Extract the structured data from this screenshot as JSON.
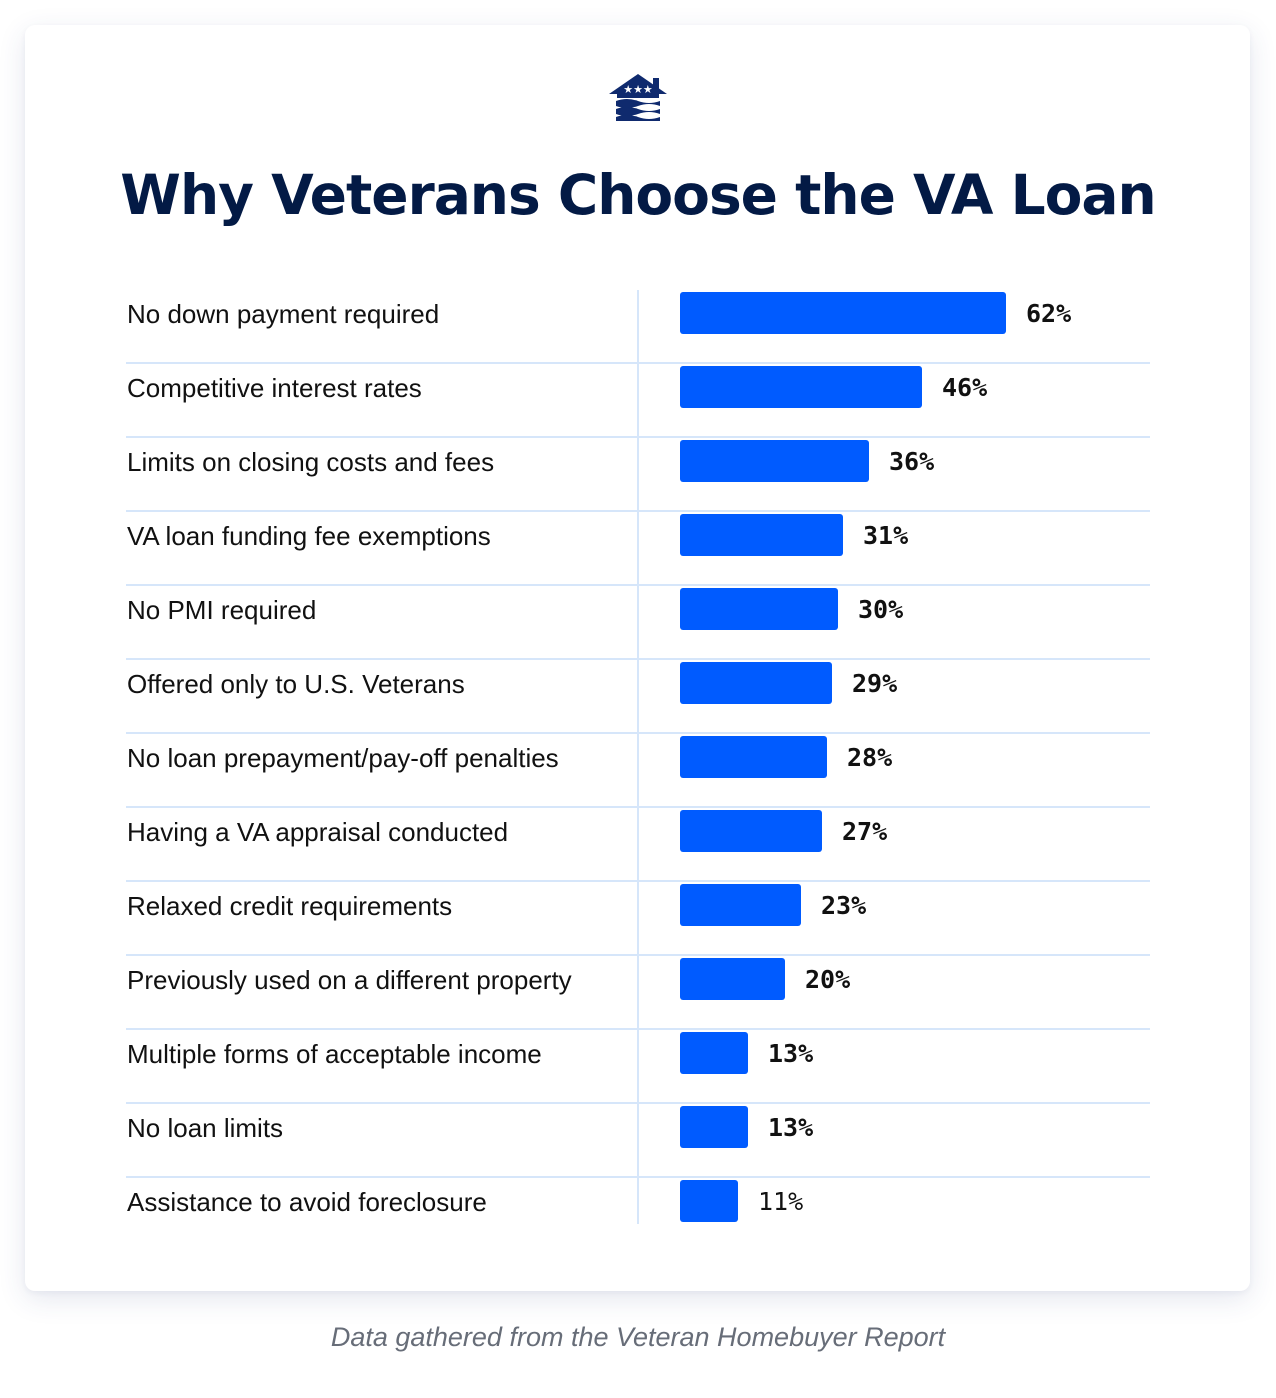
{
  "header": {
    "logo": "house-with-stars-icon",
    "title": "Why Veterans Choose the VA Loan"
  },
  "caption": "Data gathered from the Veteran Homebuyer Report",
  "colors": {
    "bar": "#005bff",
    "title": "#031a45",
    "grid": "#d6e6fa",
    "caption": "#676d78"
  },
  "chart_data": {
    "type": "bar",
    "orientation": "horizontal",
    "title": "Why Veterans Choose the VA Loan",
    "xlabel": "",
    "ylabel": "",
    "grid": true,
    "categories": [
      "No down payment required",
      "Competitive interest rates",
      "Limits on closing costs and fees",
      "VA loan funding fee exemptions",
      "No PMI required",
      "Offered only to U.S. Veterans",
      "No loan prepayment/pay-off penalties",
      "Having a VA appraisal conducted",
      "Relaxed credit requirements",
      "Previously used on a different property",
      "Multiple forms of acceptable income",
      "No loan limits",
      "Assistance to avoid foreclosure"
    ],
    "values": [
      62,
      46,
      36,
      31,
      30,
      29,
      28,
      27,
      23,
      20,
      13,
      13,
      11
    ],
    "labels": [
      "62%",
      "46%",
      "36%",
      "31%",
      "30%",
      "29%",
      "28%",
      "27%",
      "23%",
      "20%",
      "13%",
      "13%",
      "11%"
    ],
    "unit": "%",
    "source": "Data gathered from the Veteran Homebuyer Report"
  }
}
